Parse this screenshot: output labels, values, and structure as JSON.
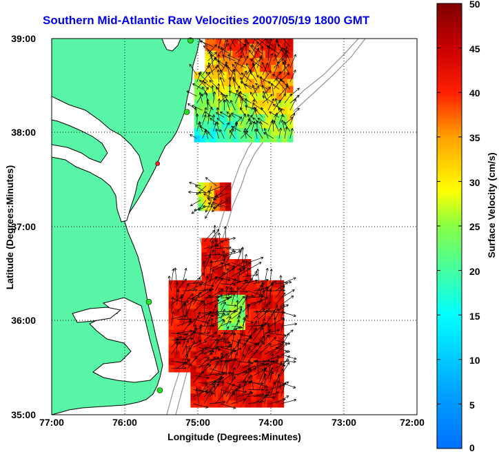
{
  "title": "Southern Mid-Atlantic Raw Velocities 2007/05/19 1800 GMT",
  "axes": {
    "xlabel": "Longitude (Degrees:Minutes)",
    "ylabel": "Latitude (Degrees:Minutes)",
    "x_ticks": [
      "77:00",
      "76:00",
      "75:00",
      "74:00",
      "73:00",
      "72:00"
    ],
    "y_ticks": [
      "39:00",
      "38:00",
      "37:00",
      "36:00",
      "35:00"
    ],
    "xlim": [
      -77,
      -72
    ],
    "ylim": [
      35,
      39
    ],
    "grid": "dotted"
  },
  "colorbar": {
    "label": "Surface Velocity (cm/s)",
    "ticks": [
      "50",
      "45",
      "40",
      "35",
      "30",
      "25",
      "20",
      "15",
      "10",
      "5",
      "0"
    ],
    "range": [
      0,
      50
    ],
    "colormap": "jet"
  },
  "colors": {
    "land": "#59f5a6",
    "title": "#0000ee",
    "coast": "#000000",
    "bathymetry": "#999999",
    "station": "#22dd22",
    "station_alt": "#ff2222"
  },
  "chart_data": {
    "type": "vector-map",
    "stations": [
      {
        "lon": -75.1,
        "lat": 38.98,
        "status": "active"
      },
      {
        "lon": -75.15,
        "lat": 38.22,
        "status": "active"
      },
      {
        "lon": -75.55,
        "lat": 37.67,
        "status": "inactive"
      },
      {
        "lon": -75.67,
        "lat": 36.2,
        "status": "active"
      },
      {
        "lon": -75.52,
        "lat": 35.26,
        "status": "active"
      }
    ],
    "velocity_regions": [
      {
        "name": "northern",
        "lon": [
          -75.05,
          -73.75
        ],
        "lat": [
          37.9,
          38.97
        ],
        "speed_cm_s": [
          15,
          45
        ]
      },
      {
        "name": "central",
        "lon": [
          -75.0,
          -74.55
        ],
        "lat": [
          37.17,
          37.4
        ],
        "speed_cm_s": [
          25,
          50
        ]
      },
      {
        "name": "southern",
        "lon": [
          -75.4,
          -73.85
        ],
        "lat": [
          35.08,
          36.82
        ],
        "speed_cm_s": [
          25,
          50
        ]
      }
    ]
  }
}
